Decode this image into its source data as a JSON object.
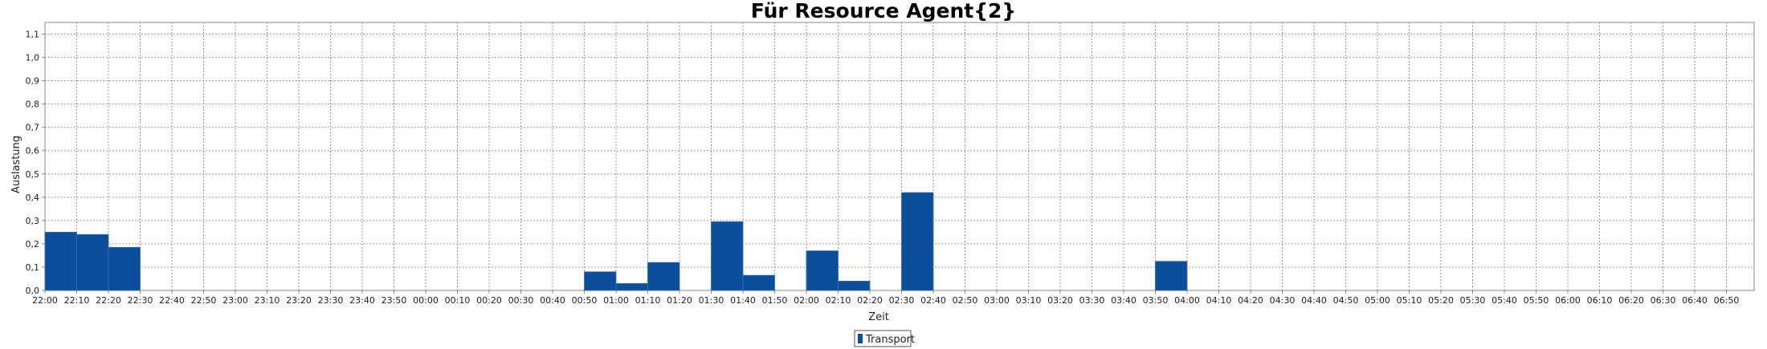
{
  "chart_data": {
    "type": "bar",
    "title": "Für Resource Agent{2}",
    "xlabel": "Zeit",
    "ylabel": "Auslastung",
    "ylim": [
      0,
      1.15
    ],
    "yticks": [
      "0,0",
      "0,1",
      "0,2",
      "0,3",
      "0,4",
      "0,5",
      "0,6",
      "0,7",
      "0,8",
      "0,9",
      "1,0",
      "1,1"
    ],
    "grid": true,
    "legend_position": "bottom-center",
    "bar_color": "#0b4f9c",
    "categories": [
      "22:00",
      "22:10",
      "22:20",
      "22:30",
      "22:40",
      "22:50",
      "23:00",
      "23:10",
      "23:20",
      "23:30",
      "23:40",
      "23:50",
      "00:00",
      "00:10",
      "00:20",
      "00:30",
      "00:40",
      "00:50",
      "01:00",
      "01:10",
      "01:20",
      "01:30",
      "01:40",
      "01:50",
      "02:00",
      "02:10",
      "02:20",
      "02:30",
      "02:40",
      "02:50",
      "03:00",
      "03:10",
      "03:20",
      "03:30",
      "03:40",
      "03:50",
      "04:00",
      "04:10",
      "04:20",
      "04:30",
      "04:40",
      "04:50",
      "05:00",
      "05:10",
      "05:20",
      "05:30",
      "05:40",
      "05:50",
      "06:00",
      "06:10",
      "06:20",
      "06:30",
      "06:40",
      "06:50"
    ],
    "series": [
      {
        "name": "Transport",
        "values": [
          0.25,
          0.24,
          0.185,
          0,
          0,
          0,
          0,
          0,
          0,
          0,
          0,
          0,
          0,
          0,
          0,
          0,
          0,
          0.08,
          0.03,
          0.12,
          0,
          0.295,
          0.065,
          0,
          0.17,
          0.04,
          0,
          0.42,
          0,
          0,
          0,
          0,
          0,
          0,
          0,
          0.125,
          0,
          0,
          0,
          0,
          0,
          0,
          0,
          0,
          0,
          0,
          0,
          0,
          0,
          0,
          0,
          0,
          0,
          0
        ]
      }
    ]
  }
}
